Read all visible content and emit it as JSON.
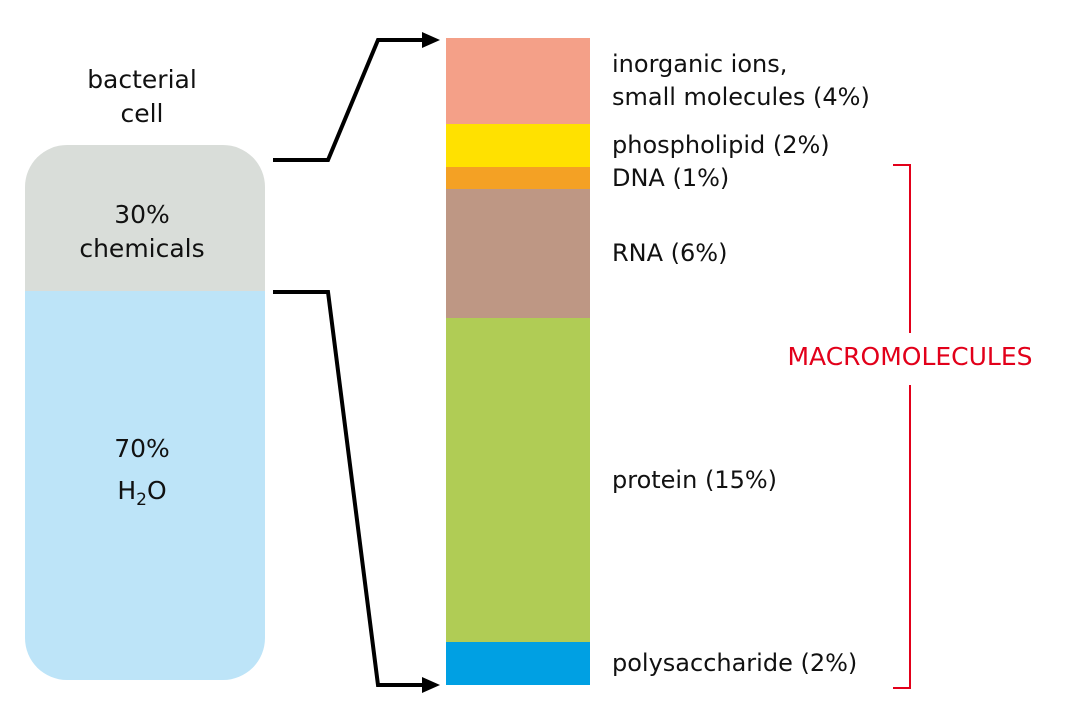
{
  "cell": {
    "title_line1": "bacterial",
    "title_line2": "cell",
    "chemicals_percent": "30%",
    "chemicals_label": "chemicals",
    "water_percent": "70%",
    "water_h": "H",
    "water_sub": "2",
    "water_o": "O",
    "chemicals_fraction": 0.3,
    "colors": {
      "chemicals": "#d9ddd9",
      "water": "#bde4f8"
    }
  },
  "components": [
    {
      "label_line1": "inorganic ions,",
      "label_line2": "small molecules (4%)",
      "percent": 4,
      "color": "#f4a088"
    },
    {
      "label_line1": "phospholipid (2%)",
      "percent": 2,
      "color": "#ffe100"
    },
    {
      "label_line1": "DNA (1%)",
      "percent": 1,
      "color": "#f4a124"
    },
    {
      "label_line1": "RNA (6%)",
      "percent": 6,
      "color": "#be9784"
    },
    {
      "label_line1": "protein (15%)",
      "percent": 15,
      "color": "#b0cc55"
    },
    {
      "label_line1": "polysaccharide (2%)",
      "percent": 2,
      "color": "#00a0e3"
    }
  ],
  "bracket": {
    "label": "MACROMOLECULES",
    "color": "#e2001a"
  }
}
